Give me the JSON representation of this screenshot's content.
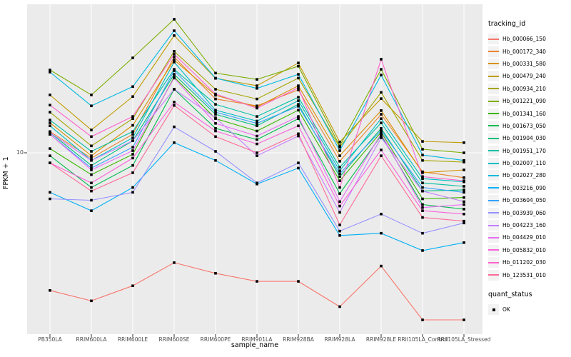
{
  "figure": {
    "y_axis_title": "FPKM + 1",
    "x_axis_title": "sample_name",
    "y_tick_label": "10",
    "colors": {
      "panel_bg": "#EBEBEB",
      "grid": "#FFFFFF",
      "axis_text": "#4D4D4D",
      "tick_mark": "#333333",
      "legend_key_bg": "#F2F2F2",
      "point": "#000000"
    }
  },
  "legend": {
    "tracking_title": "tracking_id",
    "quant_title": "quant_status",
    "quant_item": "OK"
  },
  "chart_data": {
    "type": "line",
    "title": "",
    "xlabel": "sample_name",
    "ylabel": "FPKM + 1",
    "yscale": "log10",
    "yticks": [
      10
    ],
    "ylim": [
      0.93,
      77
    ],
    "grid": "major-only",
    "marker": "black-square",
    "legend_position": "right",
    "categories": [
      "PB350LA",
      "RRIM600LA",
      "RRIM600LE",
      "RRIM600SE",
      "RRIM600PE",
      "RRIM901LA",
      "RRIM928BA",
      "RRIM928LA",
      "RRIM928LE",
      "RRII105LA_Control",
      "RRII105LA_Stressed"
    ],
    "series": [
      {
        "name": "Hb_000066_150",
        "color": "#F8766D",
        "values": [
          1.5,
          1.3,
          1.6,
          2.2,
          1.9,
          1.7,
          1.7,
          1.2,
          2.1,
          1.0,
          1.0
        ]
      },
      {
        "name": "Hb_000172_340",
        "color": "#EA8331",
        "values": [
          13.4,
          9.3,
          12.9,
          37.4,
          21.0,
          19.1,
          23.8,
          8.9,
          17.0,
          7.7,
          7.1
        ]
      },
      {
        "name": "Hb_000331_580",
        "color": "#D89000",
        "values": [
          15.1,
          9.6,
          14.6,
          35.9,
          22.1,
          18.8,
          25.2,
          9.6,
          17.9,
          7.6,
          7.9
        ]
      },
      {
        "name": "Hb_000479_240",
        "color": "#C09B00",
        "values": [
          22.2,
          13.7,
          21.7,
          50.3,
          27.9,
          25.2,
          34.5,
          11.6,
          21.1,
          11.7,
          11.5
        ]
      },
      {
        "name": "Hb_000934_210",
        "color": "#A3A500",
        "values": [
          17.5,
          11.0,
          16.0,
          40.5,
          24.0,
          21.0,
          28.0,
          10.8,
          23.0,
          9.0,
          8.8
        ]
      },
      {
        "name": "Hb_001221_090",
        "color": "#7CAE00",
        "values": [
          31.3,
          22.2,
          37.0,
          63.0,
          30.0,
          27.5,
          33.0,
          11.0,
          31.6,
          10.5,
          10.0
        ]
      },
      {
        "name": "Hb_001341_160",
        "color": "#39B600",
        "values": [
          10.6,
          7.4,
          9.8,
          28.4,
          16.0,
          13.5,
          18.0,
          6.8,
          13.3,
          5.3,
          5.4
        ]
      },
      {
        "name": "Hb_001673_050",
        "color": "#00BB4E",
        "values": [
          9.6,
          6.2,
          8.4,
          24.0,
          14.0,
          12.0,
          16.0,
          5.7,
          12.7,
          4.9,
          4.6
        ]
      },
      {
        "name": "Hb_001904_030",
        "color": "#00BF7D",
        "values": [
          13.2,
          8.4,
          11.8,
          29.5,
          17.0,
          14.5,
          19.5,
          7.2,
          14.0,
          5.9,
          6.0
        ]
      },
      {
        "name": "Hb_001951_170",
        "color": "#00C1A3",
        "values": [
          15.7,
          10.2,
          13.4,
          31.6,
          19.5,
          16.5,
          21.5,
          8.2,
          15.1,
          6.6,
          6.3
        ]
      },
      {
        "name": "Hb_002007_110",
        "color": "#00BFC4",
        "values": [
          14.5,
          9.0,
          12.3,
          34.9,
          18.0,
          15.5,
          20.5,
          7.8,
          16.0,
          7.0,
          6.7
        ]
      },
      {
        "name": "Hb_002027_280",
        "color": "#00BAE0",
        "values": [
          30.4,
          19.1,
          24.9,
          53.8,
          28.0,
          24.3,
          29.5,
          10.3,
          29.2,
          9.7,
          9.0
        ]
      },
      {
        "name": "Hb_003216_090",
        "color": "#00B0F6",
        "values": [
          5.8,
          4.5,
          6.2,
          11.5,
          9.0,
          6.5,
          8.1,
          3.2,
          3.3,
          2.6,
          2.9
        ]
      },
      {
        "name": "Hb_003604_050",
        "color": "#35A2FF",
        "values": [
          12.9,
          8.1,
          10.8,
          31.0,
          17.5,
          15.0,
          19.0,
          7.5,
          13.6,
          6.2,
          5.8
        ]
      },
      {
        "name": "Hb_003939_060",
        "color": "#9590FF",
        "values": [
          5.3,
          5.2,
          5.8,
          14.3,
          10.2,
          6.6,
          8.7,
          3.4,
          4.3,
          3.3,
          3.8
        ]
      },
      {
        "name": "Hb_004223_160",
        "color": "#C77CFF",
        "values": [
          13.2,
          9.0,
          11.8,
          24.0,
          16.2,
          9.6,
          12.6,
          4.4,
          12.3,
          5.9,
          5.1
        ]
      },
      {
        "name": "Hb_004429_010",
        "color": "#E76BF3",
        "values": [
          12.9,
          7.9,
          10.3,
          28.0,
          15.0,
          12.6,
          16.5,
          5.1,
          13.0,
          4.7,
          4.9
        ]
      },
      {
        "name": "Hb_005832_010",
        "color": "#FA62DB",
        "values": [
          8.7,
          6.6,
          9.3,
          20.1,
          13.5,
          11.3,
          14.5,
          4.8,
          10.4,
          4.5,
          4.3
        ]
      },
      {
        "name": "Hb_011202_030",
        "color": "#FF61CC",
        "values": [
          19.3,
          12.5,
          16.5,
          38.9,
          22.5,
          18.5,
          24.5,
          6.2,
          36.3,
          7.2,
          6.8
        ]
      },
      {
        "name": "Hb_123531_010",
        "color": "#FF6A98",
        "values": [
          8.7,
          5.9,
          7.6,
          19.2,
          12.5,
          10.0,
          13.0,
          3.7,
          9.6,
          4.1,
          3.9
        ]
      }
    ],
    "quant_status": {
      "title": "quant_status",
      "levels": [
        "OK"
      ]
    }
  }
}
